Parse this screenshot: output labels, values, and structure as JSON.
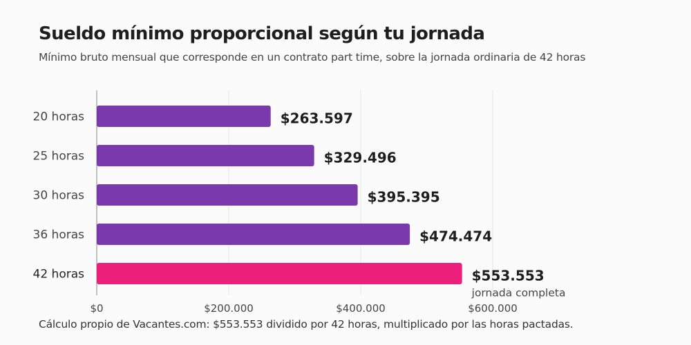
{
  "title": "Sueldo mínimo proporcional según tu jornada",
  "subtitle": "Mínimo bruto mensual que corresponde en un contrato part time, sobre la jornada ordinaria de 42 horas",
  "footer": "Cálculo propio de Vacantes.com: $553.553 dividido por 42 horas, multiplicado por las horas pactadas.",
  "colors": {
    "bar": "#7b3aab",
    "highlight": "#ec1f7a",
    "grid": "#e6e6e6",
    "axis": "#999999"
  },
  "chart_data": {
    "type": "bar",
    "orientation": "horizontal",
    "categories": [
      "20 horas",
      "25 horas",
      "30 horas",
      "36 horas",
      "42 horas"
    ],
    "values": [
      263597,
      329496,
      395395,
      474474,
      553553
    ],
    "value_labels": [
      "$263.597",
      "$329.496",
      "$395.395",
      "$474.474",
      "$553.553"
    ],
    "highlight_index": 4,
    "highlight_note": "jornada completa",
    "xlim": [
      0,
      600000
    ],
    "xticks": [
      0,
      200000,
      400000,
      600000
    ],
    "xtick_labels": [
      "$0",
      "$200.000",
      "$400.000",
      "$600.000"
    ],
    "grid": true,
    "xlabel": "",
    "ylabel": ""
  }
}
